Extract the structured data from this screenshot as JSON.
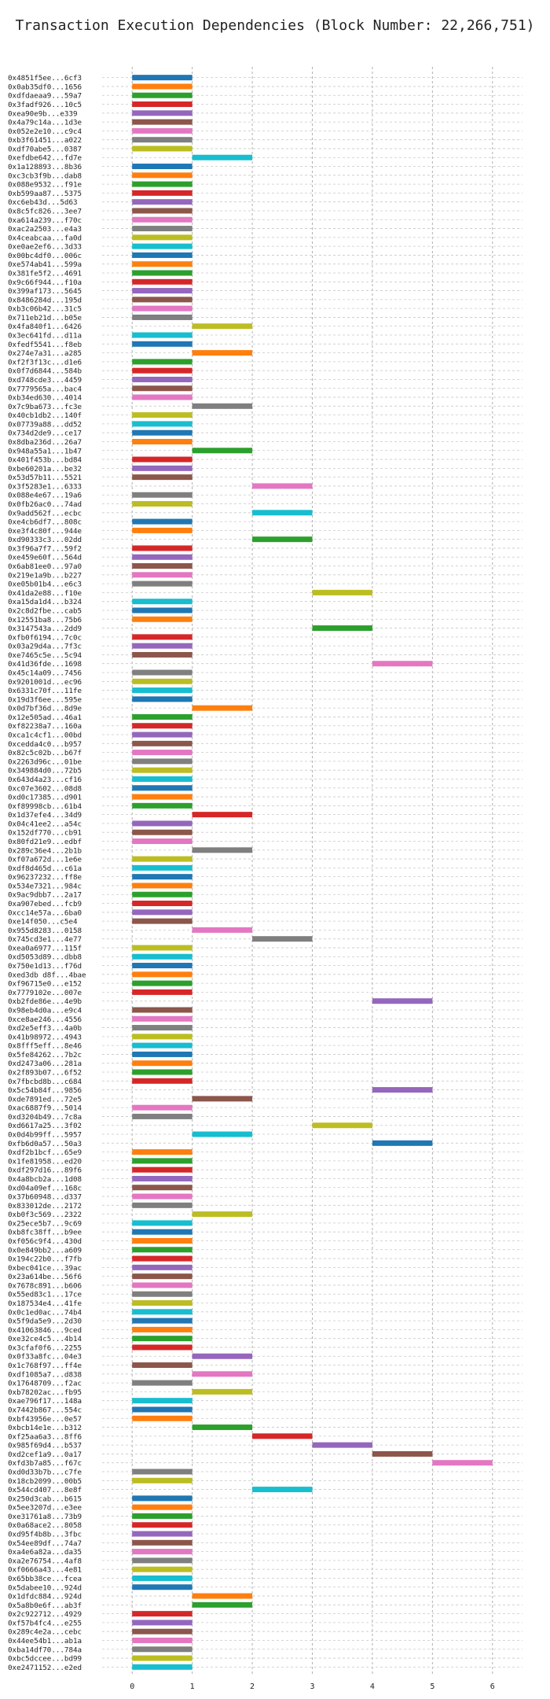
{
  "chart_data": {
    "type": "bar",
    "orientation": "horizontal",
    "title": "Transaction Execution Dependencies (Block Number: 22,266,751)",
    "xlabel": "",
    "ylabel": "",
    "xlim": [
      -0.5,
      6.5
    ],
    "xticks": [
      "0",
      "1",
      "2",
      "3",
      "4",
      "5",
      "6"
    ],
    "grid": true,
    "palette": [
      "#1f77b4",
      "#ff7f0e",
      "#2ca02c",
      "#d62728",
      "#9467bd",
      "#8c564b",
      "#e377c2",
      "#7f7f7f",
      "#bcbd22",
      "#17becf"
    ],
    "transactions": [
      {
        "label": "0x4851f5ee...6cf3",
        "start": 0,
        "end": 1
      },
      {
        "label": "0x0ab35df0...1656",
        "start": 0,
        "end": 1
      },
      {
        "label": "0xdfdaeaa9...59a7",
        "start": 0,
        "end": 1
      },
      {
        "label": "0x3fadf926...10c5",
        "start": 0,
        "end": 1
      },
      {
        "label": "0xea90e9b...e339",
        "start": 0,
        "end": 1
      },
      {
        "label": "0x4a79c14a...1d3e",
        "start": 0,
        "end": 1
      },
      {
        "label": "0x052e2e10...c9c4",
        "start": 0,
        "end": 1
      },
      {
        "label": "0xb3f61451...a022",
        "start": 0,
        "end": 1
      },
      {
        "label": "0xdf70abe5...0387",
        "start": 0,
        "end": 1
      },
      {
        "label": "0xefdbe642...fd7e",
        "start": 1,
        "end": 2
      },
      {
        "label": "0x1a128893...8b36",
        "start": 0,
        "end": 1
      },
      {
        "label": "0xc3cb3f9b...dab8",
        "start": 0,
        "end": 1
      },
      {
        "label": "0x088e9532...f91e",
        "start": 0,
        "end": 1
      },
      {
        "label": "0xb599aa87...5375",
        "start": 0,
        "end": 1
      },
      {
        "label": "0xc6eb43d...5d63",
        "start": 0,
        "end": 1
      },
      {
        "label": "0x8c5fc826...3ee7",
        "start": 0,
        "end": 1
      },
      {
        "label": "0xa614a239...f70c",
        "start": 0,
        "end": 1
      },
      {
        "label": "0xac2a2503...e4a3",
        "start": 0,
        "end": 1
      },
      {
        "label": "0x4ceabcaa...fa0d",
        "start": 0,
        "end": 1
      },
      {
        "label": "0xe0ae2ef6...3d33",
        "start": 0,
        "end": 1
      },
      {
        "label": "0x00bc4df0...006c",
        "start": 0,
        "end": 1
      },
      {
        "label": "0xe574ab41...599a",
        "start": 0,
        "end": 1
      },
      {
        "label": "0x381fe5f2...4691",
        "start": 0,
        "end": 1
      },
      {
        "label": "0x9c66f944...f10a",
        "start": 0,
        "end": 1
      },
      {
        "label": "0x399af173...5645",
        "start": 0,
        "end": 1
      },
      {
        "label": "0x8486284d...195d",
        "start": 0,
        "end": 1
      },
      {
        "label": "0xb3c06b42...31c5",
        "start": 0,
        "end": 1
      },
      {
        "label": "0x711eb21d...b05e",
        "start": 0,
        "end": 1
      },
      {
        "label": "0x4fa840f1...6426",
        "start": 1,
        "end": 2
      },
      {
        "label": "0x3ec641fd...d11a",
        "start": 0,
        "end": 1
      },
      {
        "label": "0xfedf5541...f8eb",
        "start": 0,
        "end": 1
      },
      {
        "label": "0x274e7a31...a285",
        "start": 1,
        "end": 2
      },
      {
        "label": "0xf2f3f13c...d1e6",
        "start": 0,
        "end": 1
      },
      {
        "label": "0x0f7d6844...584b",
        "start": 0,
        "end": 1
      },
      {
        "label": "0xd748cde3...4459",
        "start": 0,
        "end": 1
      },
      {
        "label": "0x7779565a...bac4",
        "start": 0,
        "end": 1
      },
      {
        "label": "0xb34ed630...4014",
        "start": 0,
        "end": 1
      },
      {
        "label": "0x7c9ba673...fc3e",
        "start": 1,
        "end": 2
      },
      {
        "label": "0x40cb1db2...140f",
        "start": 0,
        "end": 1
      },
      {
        "label": "0x07739a88...dd52",
        "start": 0,
        "end": 1
      },
      {
        "label": "0x734d2de9...ce17",
        "start": 0,
        "end": 1
      },
      {
        "label": "0x8dba236d...26a7",
        "start": 0,
        "end": 1
      },
      {
        "label": "0x948a55a1...1b47",
        "start": 1,
        "end": 2
      },
      {
        "label": "0x401f453b...bd84",
        "start": 0,
        "end": 1
      },
      {
        "label": "0xbe60201a...be32",
        "start": 0,
        "end": 1
      },
      {
        "label": "0x53d57b11...5521",
        "start": 0,
        "end": 1
      },
      {
        "label": "0x3f5283e1...6333",
        "start": 2,
        "end": 3
      },
      {
        "label": "0x088e4e67...19a6",
        "start": 0,
        "end": 1
      },
      {
        "label": "0x0fb26ac0...74ad",
        "start": 0,
        "end": 1
      },
      {
        "label": "0x9add562f...ecbc",
        "start": 2,
        "end": 3
      },
      {
        "label": "0xe4cb6df7...808c",
        "start": 0,
        "end": 1
      },
      {
        "label": "0xe3f4c80f...944e",
        "start": 0,
        "end": 1
      },
      {
        "label": "0xd90333c3...02dd",
        "start": 2,
        "end": 3
      },
      {
        "label": "0x3f96a7f7...59f2",
        "start": 0,
        "end": 1
      },
      {
        "label": "0xe459e60f...564d",
        "start": 0,
        "end": 1
      },
      {
        "label": "0x6ab81ee0...97a0",
        "start": 0,
        "end": 1
      },
      {
        "label": "0x219e1a9b...b227",
        "start": 0,
        "end": 1
      },
      {
        "label": "0xe05b01b4...e6c3",
        "start": 0,
        "end": 1
      },
      {
        "label": "0x41da2e88...f10e",
        "start": 3,
        "end": 4
      },
      {
        "label": "0xa15da1d4...b324",
        "start": 0,
        "end": 1
      },
      {
        "label": "0x2c8d2fbe...cab5",
        "start": 0,
        "end": 1
      },
      {
        "label": "0x12551ba8...75b6",
        "start": 0,
        "end": 1
      },
      {
        "label": "0x3147543a...2dd9",
        "start": 3,
        "end": 4
      },
      {
        "label": "0xfb0f6194...7c0c",
        "start": 0,
        "end": 1
      },
      {
        "label": "0x03a29d4a...7f3c",
        "start": 0,
        "end": 1
      },
      {
        "label": "0xe7465c5e...5c94",
        "start": 0,
        "end": 1
      },
      {
        "label": "0x41d36fde...1698",
        "start": 4,
        "end": 5
      },
      {
        "label": "0x45c14a09...7456",
        "start": 0,
        "end": 1
      },
      {
        "label": "0x9201001d...ec96",
        "start": 0,
        "end": 1
      },
      {
        "label": "0x6331c70f...11fe",
        "start": 0,
        "end": 1
      },
      {
        "label": "0x19d3f6ee...595e",
        "start": 0,
        "end": 1
      },
      {
        "label": "0x0d7bf36d...8d9e",
        "start": 1,
        "end": 2
      },
      {
        "label": "0x12e505ad...46a1",
        "start": 0,
        "end": 1
      },
      {
        "label": "0xf82238a7...160a",
        "start": 0,
        "end": 1
      },
      {
        "label": "0xca1c4cf1...00bd",
        "start": 0,
        "end": 1
      },
      {
        "label": "0xcedda4c0...b957",
        "start": 0,
        "end": 1
      },
      {
        "label": "0x82c5c02b...b67f",
        "start": 0,
        "end": 1
      },
      {
        "label": "0x2263d96c...01be",
        "start": 0,
        "end": 1
      },
      {
        "label": "0x349884d0...72b5",
        "start": 0,
        "end": 1
      },
      {
        "label": "0x643d4a23...cf16",
        "start": 0,
        "end": 1
      },
      {
        "label": "0xc07e3602...08d8",
        "start": 0,
        "end": 1
      },
      {
        "label": "0xd0c17385...d901",
        "start": 0,
        "end": 1
      },
      {
        "label": "0xf89998cb...61b4",
        "start": 0,
        "end": 1
      },
      {
        "label": "0x1d37efe4...34d9",
        "start": 1,
        "end": 2
      },
      {
        "label": "0x04c41ee2...a54c",
        "start": 0,
        "end": 1
      },
      {
        "label": "0x152df770...cb91",
        "start": 0,
        "end": 1
      },
      {
        "label": "0x80fd21e9...edbf",
        "start": 0,
        "end": 1
      },
      {
        "label": "0x289c36e4...2b1b",
        "start": 1,
        "end": 2
      },
      {
        "label": "0xf07a672d...1e6e",
        "start": 0,
        "end": 1
      },
      {
        "label": "0xdf8d465d...c61a",
        "start": 0,
        "end": 1
      },
      {
        "label": "0x96237232...ff8e",
        "start": 0,
        "end": 1
      },
      {
        "label": "0x534e7321...984c",
        "start": 0,
        "end": 1
      },
      {
        "label": "0x9ac9dbb7...2a17",
        "start": 0,
        "end": 1
      },
      {
        "label": "0xa907ebed...fcb9",
        "start": 0,
        "end": 1
      },
      {
        "label": "0xcc14e57a...6ba0",
        "start": 0,
        "end": 1
      },
      {
        "label": "0xe14f050...c5e4",
        "start": 0,
        "end": 1
      },
      {
        "label": "0x955d8283...0158",
        "start": 1,
        "end": 2
      },
      {
        "label": "0x745cd3e1...4e77",
        "start": 2,
        "end": 3
      },
      {
        "label": "0xea0a6977...115f",
        "start": 0,
        "end": 1
      },
      {
        "label": "0xd5053d89...dbb8",
        "start": 0,
        "end": 1
      },
      {
        "label": "0x750e1d13...f76d",
        "start": 0,
        "end": 1
      },
      {
        "label": "0xed3db d8f...4bae",
        "start": 0,
        "end": 1
      },
      {
        "label": "0xf96715e0...e152",
        "start": 0,
        "end": 1
      },
      {
        "label": "0x7779102e...007e",
        "start": 0,
        "end": 1
      },
      {
        "label": "0xb2fde86e...4e9b",
        "start": 4,
        "end": 5
      },
      {
        "label": "0x98eb4d0a...e9c4",
        "start": 0,
        "end": 1
      },
      {
        "label": "0xce8ae246...4556",
        "start": 0,
        "end": 1
      },
      {
        "label": "0xd2e5eff3...4a0b",
        "start": 0,
        "end": 1
      },
      {
        "label": "0x41b98972...4943",
        "start": 0,
        "end": 1
      },
      {
        "label": "0x8fff5eff...8e46",
        "start": 0,
        "end": 1
      },
      {
        "label": "0x5fe84262...7b2c",
        "start": 0,
        "end": 1
      },
      {
        "label": "0xd2473a06...281a",
        "start": 0,
        "end": 1
      },
      {
        "label": "0x2f893b07...6f52",
        "start": 0,
        "end": 1
      },
      {
        "label": "0x7fbcbd8b...c684",
        "start": 0,
        "end": 1
      },
      {
        "label": "0x5c54b84f...9856",
        "start": 4,
        "end": 5
      },
      {
        "label": "0xde7891ed...72e5",
        "start": 1,
        "end": 2
      },
      {
        "label": "0xac6887f9...5014",
        "start": 0,
        "end": 1
      },
      {
        "label": "0xd3204b49...7c8a",
        "start": 0,
        "end": 1
      },
      {
        "label": "0xd6617a25...3f02",
        "start": 3,
        "end": 4
      },
      {
        "label": "0x0d4b99ff...5957",
        "start": 1,
        "end": 2
      },
      {
        "label": "0xfb6d0a57...50a3",
        "start": 4,
        "end": 5
      },
      {
        "label": "0xdf2b1bcf...65e9",
        "start": 0,
        "end": 1
      },
      {
        "label": "0x1fe81958...ed20",
        "start": 0,
        "end": 1
      },
      {
        "label": "0xdf297d16...89f6",
        "start": 0,
        "end": 1
      },
      {
        "label": "0x4a8bcb2a...1d08",
        "start": 0,
        "end": 1
      },
      {
        "label": "0xd04a09ef...168c",
        "start": 0,
        "end": 1
      },
      {
        "label": "0x37b60948...d337",
        "start": 0,
        "end": 1
      },
      {
        "label": "0x833012de...2172",
        "start": 0,
        "end": 1
      },
      {
        "label": "0xb0f3c569...2322",
        "start": 1,
        "end": 2
      },
      {
        "label": "0x25ece5b7...9c69",
        "start": 0,
        "end": 1
      },
      {
        "label": "0xb8fc38ff...b9ee",
        "start": 0,
        "end": 1
      },
      {
        "label": "0xf056c9f4...430d",
        "start": 0,
        "end": 1
      },
      {
        "label": "0x0e849bb2...a609",
        "start": 0,
        "end": 1
      },
      {
        "label": "0x194c22b0...f7fb",
        "start": 0,
        "end": 1
      },
      {
        "label": "0xbec041ce...39ac",
        "start": 0,
        "end": 1
      },
      {
        "label": "0x23a614be...56f6",
        "start": 0,
        "end": 1
      },
      {
        "label": "0x7678c891...b606",
        "start": 0,
        "end": 1
      },
      {
        "label": "0x55ed83c1...17ce",
        "start": 0,
        "end": 1
      },
      {
        "label": "0x187534e4...41fe",
        "start": 0,
        "end": 1
      },
      {
        "label": "0x0c1ed0ac...74b4",
        "start": 0,
        "end": 1
      },
      {
        "label": "0x5f9da5e9...2d30",
        "start": 0,
        "end": 1
      },
      {
        "label": "0x41063846...9ced",
        "start": 0,
        "end": 1
      },
      {
        "label": "0xe32ce4c5...4b14",
        "start": 0,
        "end": 1
      },
      {
        "label": "0x3cfaf0f6...2255",
        "start": 0,
        "end": 1
      },
      {
        "label": "0x0f33a8fc...04e3",
        "start": 1,
        "end": 2
      },
      {
        "label": "0x1c768f97...ff4e",
        "start": 0,
        "end": 1
      },
      {
        "label": "0xdf1085a7...d838",
        "start": 1,
        "end": 2
      },
      {
        "label": "0x17648709...f2ac",
        "start": 0,
        "end": 1
      },
      {
        "label": "0xb78202ac...fb95",
        "start": 1,
        "end": 2
      },
      {
        "label": "0xae796f17...148a",
        "start": 0,
        "end": 1
      },
      {
        "label": "0x7442b867...554c",
        "start": 0,
        "end": 1
      },
      {
        "label": "0xbf43956e...0e57",
        "start": 0,
        "end": 1
      },
      {
        "label": "0xbcb14e1e...b312",
        "start": 1,
        "end": 2
      },
      {
        "label": "0xf25aa6a3...8ff6",
        "start": 2,
        "end": 3
      },
      {
        "label": "0x985f69d4...b537",
        "start": 3,
        "end": 4
      },
      {
        "label": "0xd2cef1a9...0a17",
        "start": 4,
        "end": 5
      },
      {
        "label": "0xfd3b7a85...f67c",
        "start": 5,
        "end": 6
      },
      {
        "label": "0xd0d33b7b...c7fe",
        "start": 0,
        "end": 1
      },
      {
        "label": "0x18cb2099...00b5",
        "start": 0,
        "end": 1
      },
      {
        "label": "0x544cd407...8e8f",
        "start": 2,
        "end": 3
      },
      {
        "label": "0x250d3cab...b615",
        "start": 0,
        "end": 1
      },
      {
        "label": "0x5ee3207d...e3ee",
        "start": 0,
        "end": 1
      },
      {
        "label": "0xe31761a8...73b9",
        "start": 0,
        "end": 1
      },
      {
        "label": "0x0a68ace2...8058",
        "start": 0,
        "end": 1
      },
      {
        "label": "0xd95f4b8b...3fbc",
        "start": 0,
        "end": 1
      },
      {
        "label": "0x54ee89df...74a7",
        "start": 0,
        "end": 1
      },
      {
        "label": "0xa4e6a82a...da35",
        "start": 0,
        "end": 1
      },
      {
        "label": "0xa2e76754...4af8",
        "start": 0,
        "end": 1
      },
      {
        "label": "0xf0666a43...4e81",
        "start": 0,
        "end": 1
      },
      {
        "label": "0x65bb38ce...fcea",
        "start": 0,
        "end": 1
      },
      {
        "label": "0x5dabee10...924d",
        "start": 0,
        "end": 1
      },
      {
        "label": "0x1dfdc884...924d",
        "start": 1,
        "end": 2
      },
      {
        "label": "0x5a8b0e6f...ab3f",
        "start": 1,
        "end": 2
      },
      {
        "label": "0x2c922712...4929",
        "start": 0,
        "end": 1
      },
      {
        "label": "0xf57b4fc4...e255",
        "start": 0,
        "end": 1
      },
      {
        "label": "0x289c4e2a...cebc",
        "start": 0,
        "end": 1
      },
      {
        "label": "0x44ee54b1...ab1a",
        "start": 0,
        "end": 1
      },
      {
        "label": "0xba14df70...784a",
        "start": 0,
        "end": 1
      },
      {
        "label": "0xbc5dccee...bd99",
        "start": 0,
        "end": 1
      },
      {
        "label": "0xe2471152...e2ed",
        "start": 0,
        "end": 1
      }
    ]
  }
}
